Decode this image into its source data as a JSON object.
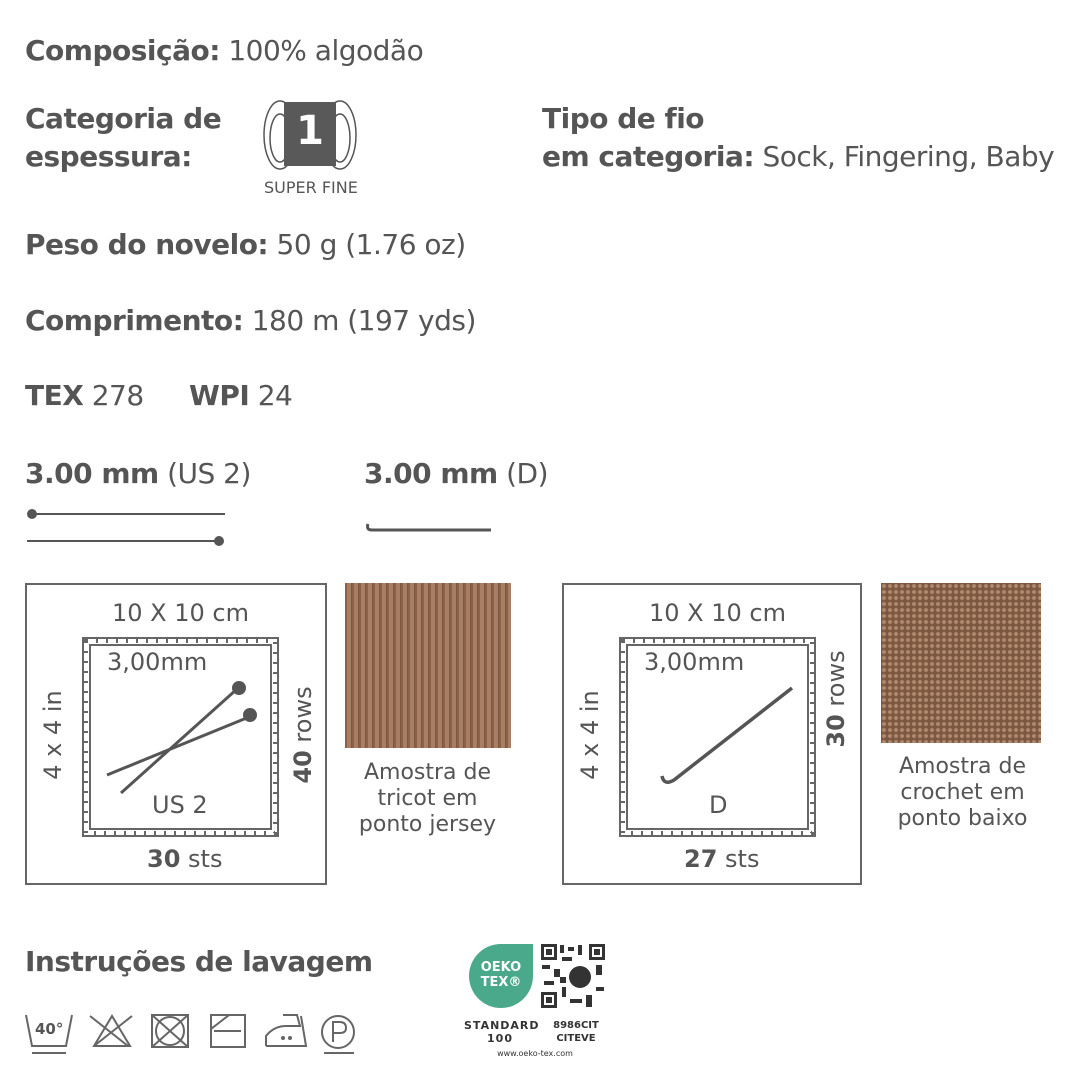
{
  "composition": {
    "label": "Composição:",
    "value": "100% algodão"
  },
  "weight_category": {
    "label_line1": "Categoria de",
    "label_line2": "espessura:",
    "badge_number": "1",
    "badge_text": "SUPER FINE"
  },
  "yarn_type": {
    "label_line1": "Tipo de fio",
    "label_line2": "em categoria:",
    "value": "Sock, Fingering, Baby"
  },
  "ball_weight": {
    "label": "Peso do novelo:",
    "value": "50 g (1.76 oz)"
  },
  "length": {
    "label": "Comprimento:",
    "value": "180 m (197 yds)"
  },
  "tex": {
    "label": "TEX",
    "value": "278"
  },
  "wpi": {
    "label": "WPI",
    "value": "24"
  },
  "needle": {
    "size": "3.00 mm",
    "us": "(US 2)"
  },
  "hook": {
    "size": "3.00 mm",
    "letter": "(D)"
  },
  "knit_gauge": {
    "size_cm": "10 X 10 cm",
    "size_in": "4 x 4 in",
    "tool_mm": "3,00mm",
    "tool_size": "US 2",
    "rows_num": "40",
    "rows_label": "rows",
    "sts_num": "30",
    "sts_label": "sts",
    "swatch_caption": [
      "Amostra de",
      "tricot em",
      "ponto jersey"
    ]
  },
  "crochet_gauge": {
    "size_cm": "10 X 10 cm",
    "size_in": "4 x 4 in",
    "tool_mm": "3,00mm",
    "tool_size": "D",
    "rows_num": "30",
    "rows_label": "rows",
    "sts_num": "27",
    "sts_label": "sts",
    "swatch_caption": [
      "Amostra de",
      "crochet em",
      "ponto baixo"
    ]
  },
  "care": {
    "title": "Instruções de lavagem",
    "wash_temp": "40°",
    "icons": [
      "wash-40-gentle-icon",
      "do-not-bleach-icon",
      "do-not-tumble-dry-icon",
      "dry-flat-shade-icon",
      "iron-medium-icon",
      "dry-clean-p-gentle-icon"
    ]
  },
  "oekotex": {
    "logo_line1": "OEKO",
    "logo_line2": "TEX®",
    "standard": "STANDARD",
    "number": "100",
    "cert": "8986CIT",
    "institute": "CITEVE",
    "url": "www.oeko-tex.com",
    "color": "#4aa98a"
  },
  "colors": {
    "text": "#555555",
    "swatch": "#9a7258"
  }
}
